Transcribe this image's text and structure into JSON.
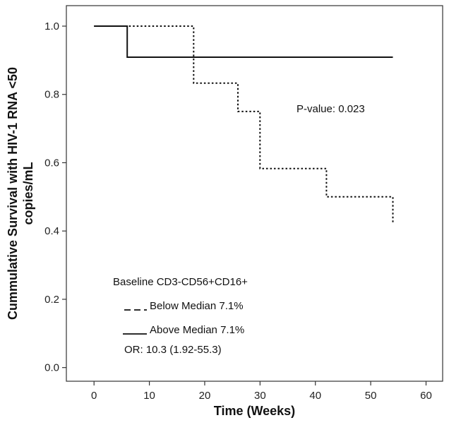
{
  "chart_data": {
    "type": "line",
    "subtype": "kaplan-meier step",
    "xlabel": "Time (Weeks)",
    "ylabel_line1": "Cummulative Survival with HIV-1 RNA <50",
    "ylabel_line2": "copies/mL",
    "xlim": [
      -5,
      63
    ],
    "ylim": [
      -0.04,
      1.06
    ],
    "x_ticks": [
      0,
      10,
      20,
      30,
      40,
      50,
      60
    ],
    "y_ticks": [
      0.0,
      0.2,
      0.4,
      0.6,
      0.8,
      1.0
    ],
    "x_tick_labels": [
      "0",
      "10",
      "20",
      "30",
      "40",
      "50",
      "60"
    ],
    "y_tick_labels": [
      "0.0",
      "0.2",
      "0.4",
      "0.6",
      "0.8",
      "1.0"
    ],
    "grid": false,
    "series": [
      {
        "key": "below",
        "line_style": "dotted",
        "color": "#111111",
        "x": [
          0,
          18,
          18,
          26,
          26,
          30,
          30,
          42,
          42,
          54,
          54
        ],
        "y": [
          1.0,
          1.0,
          0.833,
          0.833,
          0.75,
          0.75,
          0.583,
          0.583,
          0.5,
          0.5,
          0.42
        ]
      },
      {
        "key": "above",
        "line_style": "solid",
        "color": "#111111",
        "x": [
          0,
          6,
          6,
          54
        ],
        "y": [
          1.0,
          1.0,
          0.909,
          0.909
        ]
      }
    ],
    "annotations": {
      "p_value": "P-value: 0.023",
      "legend_title": "Baseline CD3-CD56+CD16+",
      "legend_below_label": "Below Median 7.1%",
      "legend_above_label": "Above Median 7.1%",
      "odds_ratio": "OR: 10.3 (1.92-55.3)",
      "legend_placement": "bottom-left"
    }
  }
}
